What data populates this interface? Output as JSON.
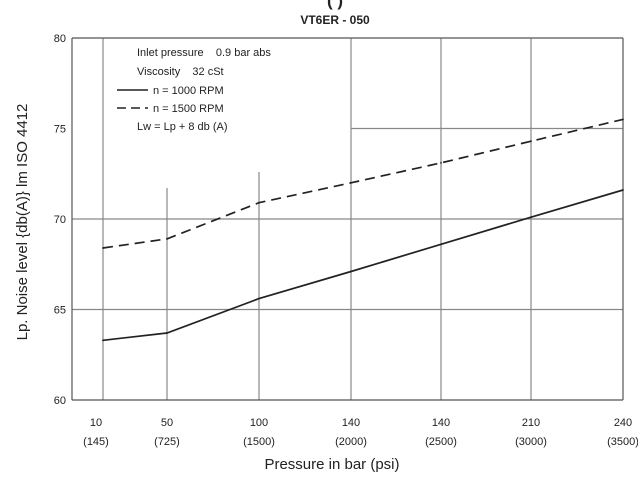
{
  "chart_data": {
    "type": "line",
    "title": "",
    "title_partial": "( )",
    "subtitle": "VT6ER - 050",
    "xlabel": "Pressure in bar (psi)",
    "ylabel": "Lp. Noise level {db(A)} lm ISO 4412",
    "categories": [
      {
        "bar": "10",
        "psi": "(145)"
      },
      {
        "bar": "50",
        "psi": "(725)"
      },
      {
        "bar": "100",
        "psi": "(1500)"
      },
      {
        "bar": "140",
        "psi": "(2000)"
      },
      {
        "bar": "140",
        "psi": "(2500)"
      },
      {
        "bar": "210",
        "psi": "(3000)"
      },
      {
        "bar": "240",
        "psi": "(3500)"
      }
    ],
    "y_ticks": [
      "60",
      "65",
      "70",
      "75",
      "80"
    ],
    "ylim": [
      60,
      80
    ],
    "grid": true,
    "series": [
      {
        "name": "n = 1000 RPM",
        "style": "solid",
        "values": [
          63.3,
          63.7,
          65.6,
          67.1,
          68.6,
          70.1,
          71.6
        ]
      },
      {
        "name": "n = 1500 RPM",
        "style": "dashed",
        "values": [
          68.4,
          68.9,
          70.9,
          72.0,
          73.1,
          74.3,
          75.5
        ]
      }
    ],
    "annotations": [
      "Inlet pressure    0.9 bar abs",
      "Viscosity    32 cSt",
      "Lw = Lp + 8 db (A)"
    ],
    "legend_position": "top-left",
    "line_color": "#222222",
    "grid_color": "#888888"
  }
}
